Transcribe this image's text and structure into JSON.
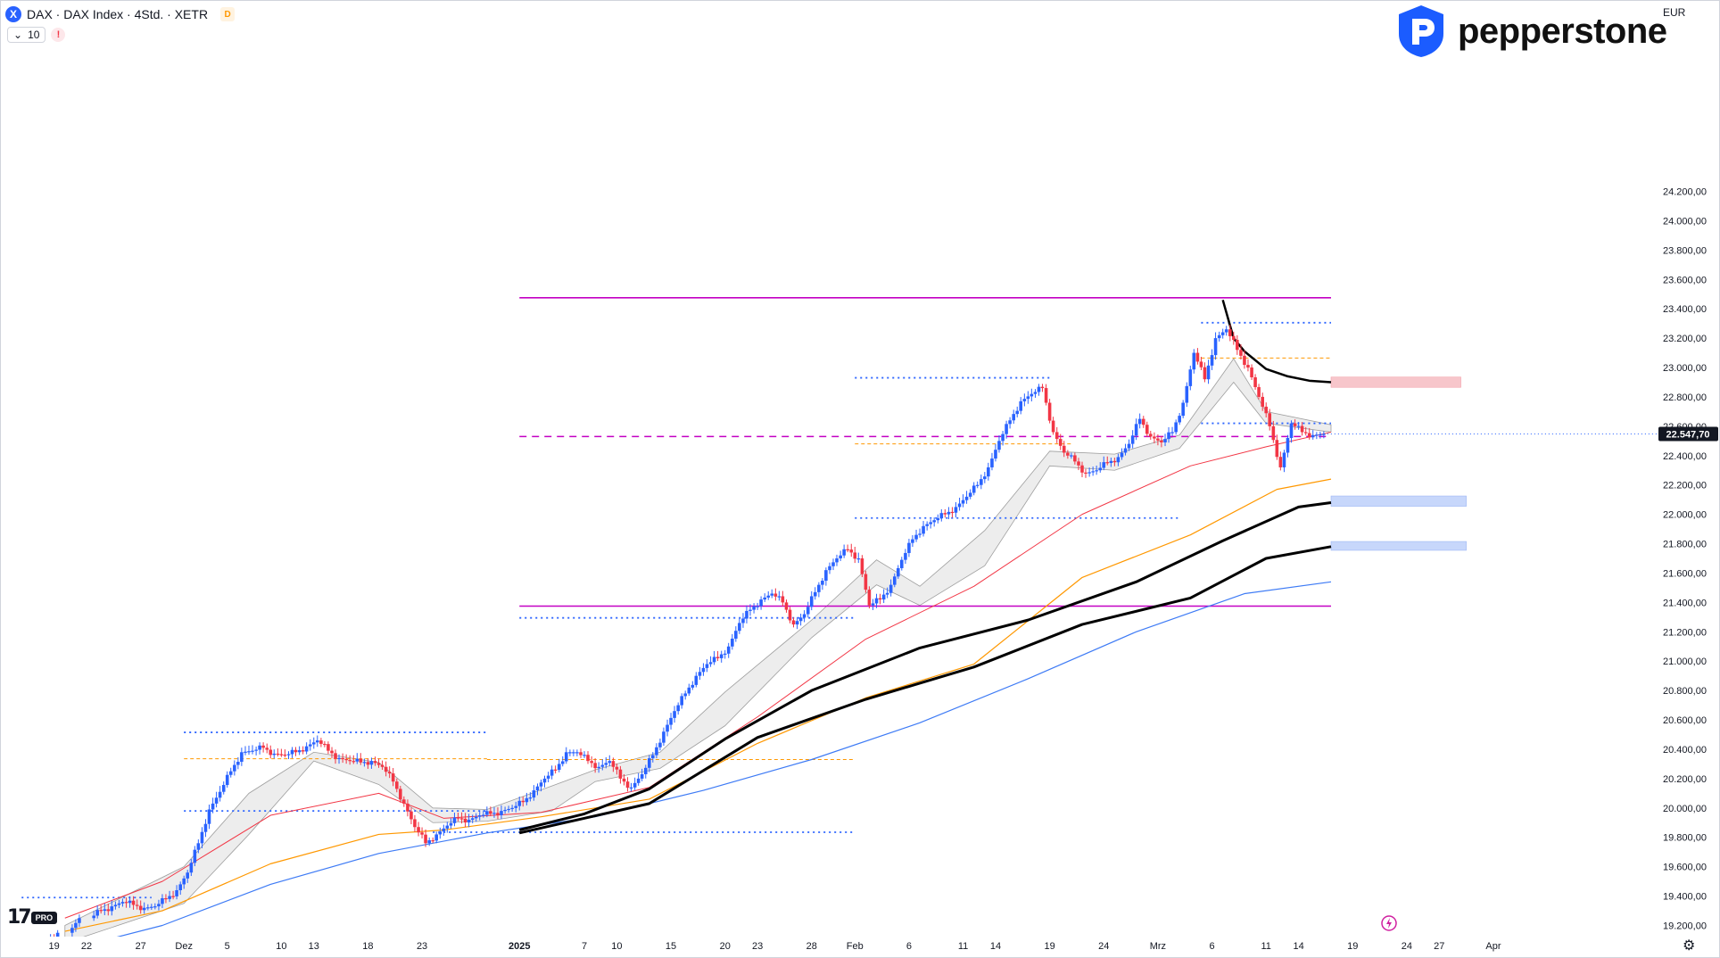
{
  "header": {
    "symbol_badge": "X",
    "title": "DAX · DAX Index · 4Std. · XETR",
    "delay_badge": "D",
    "indicator_count": "10",
    "alert_badge": "!"
  },
  "brand": {
    "name": "pepperstone",
    "color": "#1b5cff"
  },
  "tv_logo": {
    "mark": "17",
    "tier": "PRO"
  },
  "currency": "EUR",
  "colors": {
    "up": "#2962ff",
    "down": "#f23645",
    "magenta": "#c300c3",
    "dotted_blue": "#2962ff",
    "ema_red": "#f23645",
    "ema_orange": "#ff9800",
    "ema_blue": "#3e7bf5",
    "ema_black": "#000000",
    "supply_zone": "#f7c6cb",
    "demand_zone": "#c7d7fb",
    "last_price_bg": "#131722"
  },
  "chart_data": {
    "type": "candlestick",
    "interval": "4Std.",
    "currency": "EUR",
    "last_price": 22547.7,
    "last_price_label": "22.547,70",
    "y_range": [
      19080,
      24280
    ],
    "x_range_days": [
      -3,
      137
    ],
    "price_axis_labels": [
      "24.200,00",
      "24.000,00",
      "23.800,00",
      "23.600,00",
      "23.400,00",
      "23.200,00",
      "23.000,00",
      "22.800,00",
      "22.600,00",
      "22.400,00",
      "22.200,00",
      "22.000,00",
      "21.800,00",
      "21.600,00",
      "21.400,00",
      "21.200,00",
      "21.000,00",
      "20.800,00",
      "20.600,00",
      "20.400,00",
      "20.200,00",
      "20.000,00",
      "19.800,00",
      "19.600,00",
      "19.400,00",
      "19.200,00"
    ],
    "price_axis_values": [
      24200,
      24000,
      23800,
      23600,
      23400,
      23200,
      23000,
      22800,
      22600,
      22400,
      22200,
      22000,
      21800,
      21600,
      21400,
      21200,
      21000,
      20800,
      20600,
      20400,
      20200,
      20000,
      19800,
      19600,
      19400,
      19200
    ],
    "time_axis": [
      {
        "label": "19",
        "day": 0
      },
      {
        "label": "22",
        "day": 3
      },
      {
        "label": "27",
        "day": 8
      },
      {
        "label": "Dez",
        "day": 12
      },
      {
        "label": "5",
        "day": 16
      },
      {
        "label": "10",
        "day": 21
      },
      {
        "label": "13",
        "day": 24
      },
      {
        "label": "18",
        "day": 29
      },
      {
        "label": "23",
        "day": 34
      },
      {
        "label": "2025",
        "day": 43
      },
      {
        "label": "7",
        "day": 49
      },
      {
        "label": "10",
        "day": 52
      },
      {
        "label": "15",
        "day": 57
      },
      {
        "label": "20",
        "day": 62
      },
      {
        "label": "23",
        "day": 65
      },
      {
        "label": "28",
        "day": 70
      },
      {
        "label": "Feb",
        "day": 74
      },
      {
        "label": "6",
        "day": 79
      },
      {
        "label": "11",
        "day": 84
      },
      {
        "label": "14",
        "day": 87
      },
      {
        "label": "19",
        "day": 92
      },
      {
        "label": "24",
        "day": 97
      },
      {
        "label": "Mrz",
        "day": 102
      },
      {
        "label": "6",
        "day": 107
      },
      {
        "label": "11",
        "day": 112
      },
      {
        "label": "14",
        "day": 115
      },
      {
        "label": "19",
        "day": 120
      },
      {
        "label": "24",
        "day": 125
      },
      {
        "label": "27",
        "day": 128
      },
      {
        "label": "Apr",
        "day": 133
      }
    ],
    "closes": [
      [
        0,
        19150
      ],
      [
        2,
        19250
      ],
      [
        4,
        19300
      ],
      [
        5,
        19330
      ],
      [
        6,
        19360
      ],
      [
        7,
        19340
      ],
      [
        8,
        19320
      ],
      [
        9,
        19330
      ],
      [
        10,
        19380
      ],
      [
        11,
        19440
      ],
      [
        12,
        19560
      ],
      [
        13,
        19760
      ],
      [
        14,
        19990
      ],
      [
        15,
        20110
      ],
      [
        16,
        20250
      ],
      [
        17,
        20380
      ],
      [
        18,
        20390
      ],
      [
        19,
        20410
      ],
      [
        20,
        20370
      ],
      [
        21,
        20360
      ],
      [
        22,
        20380
      ],
      [
        23,
        20420
      ],
      [
        24,
        20460
      ],
      [
        25,
        20390
      ],
      [
        26,
        20340
      ],
      [
        27,
        20320
      ],
      [
        28,
        20310
      ],
      [
        29,
        20320
      ],
      [
        30,
        20280
      ],
      [
        31,
        20180
      ],
      [
        32,
        20030
      ],
      [
        33,
        19870
      ],
      [
        34,
        19760
      ],
      [
        35,
        19820
      ],
      [
        36,
        19880
      ],
      [
        37,
        19930
      ],
      [
        38,
        19920
      ],
      [
        39,
        19950
      ],
      [
        40,
        19960
      ],
      [
        41,
        19980
      ],
      [
        42,
        20000
      ],
      [
        43,
        20040
      ],
      [
        44,
        20120
      ],
      [
        45,
        20200
      ],
      [
        46,
        20260
      ],
      [
        47,
        20380
      ],
      [
        48,
        20380
      ],
      [
        49,
        20320
      ],
      [
        50,
        20280
      ],
      [
        51,
        20320
      ],
      [
        52,
        20200
      ],
      [
        53,
        20140
      ],
      [
        54,
        20230
      ],
      [
        55,
        20360
      ],
      [
        56,
        20520
      ],
      [
        57,
        20660
      ],
      [
        58,
        20780
      ],
      [
        59,
        20900
      ],
      [
        60,
        20980
      ],
      [
        61,
        21020
      ],
      [
        62,
        21100
      ],
      [
        63,
        21260
      ],
      [
        64,
        21350
      ],
      [
        65,
        21420
      ],
      [
        66,
        21460
      ],
      [
        67,
        21400
      ],
      [
        68,
        21250
      ],
      [
        69,
        21320
      ],
      [
        70,
        21470
      ],
      [
        71,
        21620
      ],
      [
        72,
        21700
      ],
      [
        73,
        21760
      ],
      [
        74,
        21700
      ],
      [
        75,
        21380
      ],
      [
        76,
        21420
      ],
      [
        77,
        21520
      ],
      [
        78,
        21690
      ],
      [
        79,
        21830
      ],
      [
        80,
        21920
      ],
      [
        81,
        21960
      ],
      [
        82,
        22000
      ],
      [
        83,
        22050
      ],
      [
        84,
        22120
      ],
      [
        85,
        22200
      ],
      [
        86,
        22320
      ],
      [
        87,
        22500
      ],
      [
        88,
        22640
      ],
      [
        89,
        22770
      ],
      [
        90,
        22820
      ],
      [
        91,
        22860
      ],
      [
        92,
        22560
      ],
      [
        93,
        22420
      ],
      [
        94,
        22360
      ],
      [
        95,
        22280
      ],
      [
        96,
        22300
      ],
      [
        97,
        22350
      ],
      [
        98,
        22390
      ],
      [
        99,
        22480
      ],
      [
        100,
        22650
      ],
      [
        101,
        22530
      ],
      [
        102,
        22490
      ],
      [
        103,
        22560
      ],
      [
        104,
        22760
      ],
      [
        105,
        23100
      ],
      [
        106,
        22920
      ],
      [
        107,
        23200
      ],
      [
        108,
        23260
      ],
      [
        109,
        23120
      ],
      [
        110,
        23000
      ],
      [
        111,
        22800
      ],
      [
        112,
        22600
      ],
      [
        113,
        22320
      ],
      [
        114,
        22620
      ],
      [
        115,
        22560
      ],
      [
        116,
        22540
      ],
      [
        117,
        22547.7
      ]
    ],
    "horizontal_levels": [
      {
        "style": "solid",
        "color": "magenta",
        "value": 23475,
        "from_day": 43,
        "to_day": 118
      },
      {
        "style": "solid",
        "color": "magenta",
        "value": 21375,
        "from_day": 43,
        "to_day": 118
      },
      {
        "style": "dashed",
        "color": "magenta",
        "value": 22530,
        "from_day": 43,
        "to_day": 118
      },
      {
        "style": "dotted",
        "color": "blue",
        "value": 23305,
        "from_day": 106,
        "to_day": 118
      },
      {
        "style": "dotted",
        "color": "orange",
        "value": 23065,
        "from_day": 106,
        "to_day": 118
      },
      {
        "style": "dotted",
        "color": "blue",
        "value": 22930,
        "from_day": 74,
        "to_day": 92
      },
      {
        "style": "dotted",
        "color": "blue",
        "value": 22620,
        "from_day": 106,
        "to_day": 118
      },
      {
        "style": "dotted",
        "color": "orange",
        "value": 22480,
        "from_day": 74,
        "to_day": 94
      },
      {
        "style": "dotted",
        "color": "blue",
        "value": 21975,
        "from_day": 74,
        "to_day": 104
      },
      {
        "style": "dotted",
        "color": "blue",
        "value": 21295,
        "from_day": 43,
        "to_day": 74
      },
      {
        "style": "dotted",
        "color": "blue",
        "value": 20515,
        "from_day": 12,
        "to_day": 40
      },
      {
        "style": "dotted",
        "color": "orange",
        "value": 20335,
        "from_day": 12,
        "to_day": 40
      },
      {
        "style": "dotted",
        "color": "orange",
        "value": 20330,
        "from_day": 40,
        "to_day": 74
      },
      {
        "style": "dotted",
        "color": "blue",
        "value": 19980,
        "from_day": 12,
        "to_day": 40
      },
      {
        "style": "dotted",
        "color": "blue",
        "value": 19835,
        "from_day": 35,
        "to_day": 74
      },
      {
        "style": "dotted",
        "color": "blue",
        "value": 19390,
        "from_day": -3,
        "to_day": 9
      }
    ],
    "zones": [
      {
        "type": "supply",
        "top": 22935,
        "bottom": 22865,
        "from_day": 118,
        "to_day": 130
      },
      {
        "type": "demand",
        "top": 22125,
        "bottom": 22055,
        "from_day": 118,
        "to_day": 130.5
      },
      {
        "type": "demand",
        "top": 21815,
        "bottom": 21755,
        "from_day": 118,
        "to_day": 130.5
      }
    ],
    "moving_averages": [
      {
        "color": "ema_blue",
        "width": 1.2,
        "points": [
          [
            1,
            19030
          ],
          [
            10,
            19200
          ],
          [
            20,
            19480
          ],
          [
            30,
            19690
          ],
          [
            40,
            19830
          ],
          [
            50,
            19940
          ],
          [
            60,
            20120
          ],
          [
            70,
            20330
          ],
          [
            80,
            20580
          ],
          [
            90,
            20880
          ],
          [
            100,
            21200
          ],
          [
            110,
            21460
          ],
          [
            118,
            21540
          ]
        ]
      },
      {
        "color": "ema_orange",
        "width": 1.2,
        "points": [
          [
            1,
            19160
          ],
          [
            10,
            19300
          ],
          [
            20,
            19620
          ],
          [
            30,
            19820
          ],
          [
            36,
            19850
          ],
          [
            45,
            19940
          ],
          [
            55,
            20060
          ],
          [
            65,
            20440
          ],
          [
            75,
            20750
          ],
          [
            85,
            20980
          ],
          [
            95,
            21570
          ],
          [
            105,
            21860
          ],
          [
            113,
            22170
          ],
          [
            118,
            22240
          ]
        ]
      },
      {
        "color": "ema_red",
        "width": 1,
        "points": [
          [
            1,
            19250
          ],
          [
            10,
            19500
          ],
          [
            20,
            19950
          ],
          [
            30,
            20100
          ],
          [
            36,
            19930
          ],
          [
            45,
            19970
          ],
          [
            55,
            20140
          ],
          [
            65,
            20620
          ],
          [
            75,
            21150
          ],
          [
            85,
            21510
          ],
          [
            95,
            22000
          ],
          [
            105,
            22330
          ],
          [
            112,
            22460
          ],
          [
            118,
            22560
          ]
        ]
      },
      {
        "color": "ema_black",
        "width": 3,
        "points": [
          [
            43,
            19850
          ],
          [
            49,
            19960
          ],
          [
            55,
            20130
          ],
          [
            62,
            20470
          ],
          [
            70,
            20800
          ],
          [
            80,
            21090
          ],
          [
            90,
            21280
          ],
          [
            100,
            21540
          ],
          [
            108,
            21820
          ],
          [
            115,
            22050
          ],
          [
            118,
            22080
          ]
        ]
      },
      {
        "color": "ema_black",
        "width": 3,
        "points": [
          [
            43,
            19830
          ],
          [
            55,
            20030
          ],
          [
            65,
            20480
          ],
          [
            75,
            20740
          ],
          [
            85,
            20960
          ],
          [
            95,
            21250
          ],
          [
            105,
            21430
          ],
          [
            112,
            21700
          ],
          [
            118,
            21780
          ]
        ]
      },
      {
        "color": "ema_black",
        "width": 2.5,
        "points": [
          [
            108,
            23460
          ],
          [
            109,
            23200
          ],
          [
            110,
            23110
          ],
          [
            112,
            22990
          ],
          [
            114,
            22940
          ],
          [
            116,
            22910
          ],
          [
            118,
            22900
          ]
        ]
      }
    ],
    "ribbons": [
      {
        "upper": [
          [
            1,
            19200
          ],
          [
            12,
            19600
          ],
          [
            18,
            20100
          ],
          [
            24,
            20380
          ],
          [
            30,
            20310
          ],
          [
            35,
            20000
          ],
          [
            40,
            19990
          ],
          [
            46,
            20150
          ],
          [
            50,
            20260
          ],
          [
            56,
            20380
          ],
          [
            62,
            20790
          ],
          [
            70,
            21280
          ],
          [
            76,
            21690
          ],
          [
            80,
            21510
          ],
          [
            86,
            21890
          ],
          [
            92,
            22430
          ],
          [
            98,
            22410
          ],
          [
            104,
            22540
          ],
          [
            109,
            23060
          ],
          [
            112,
            22700
          ],
          [
            118,
            22610
          ]
        ],
        "lower": [
          [
            1,
            19080
          ],
          [
            12,
            19350
          ],
          [
            18,
            19820
          ],
          [
            24,
            20320
          ],
          [
            30,
            20160
          ],
          [
            35,
            19900
          ],
          [
            40,
            19910
          ],
          [
            46,
            19980
          ],
          [
            50,
            20180
          ],
          [
            56,
            20270
          ],
          [
            62,
            20560
          ],
          [
            70,
            21160
          ],
          [
            76,
            21520
          ],
          [
            80,
            21380
          ],
          [
            86,
            21650
          ],
          [
            92,
            22330
          ],
          [
            98,
            22300
          ],
          [
            104,
            22450
          ],
          [
            109,
            22900
          ],
          [
            112,
            22620
          ],
          [
            118,
            22560
          ]
        ]
      }
    ]
  }
}
